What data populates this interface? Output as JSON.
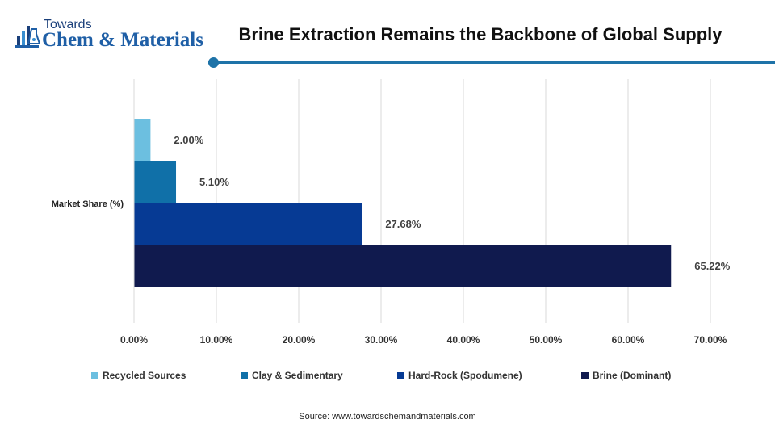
{
  "logo": {
    "line1": "Towards",
    "line2": "Chem & Materials"
  },
  "header": {
    "title": "Brine Extraction Remains the Backbone of Global Supply"
  },
  "source": "Source: www.towardschemandmaterials.com",
  "colors": {
    "accent": "#1e73a8",
    "grid": "#d9d9d9"
  },
  "chart_data": {
    "type": "bar",
    "orientation": "horizontal",
    "categories": [
      "Market Share (%)"
    ],
    "series": [
      {
        "name": "Recycled Sources",
        "values": [
          2.0
        ],
        "label": "2.00%",
        "color": "#6cbfe0"
      },
      {
        "name": "Clay & Sedimentary",
        "values": [
          5.1
        ],
        "label": "5.10%",
        "color": "#1070a8"
      },
      {
        "name": "Hard-Rock (Spodumene)",
        "values": [
          27.68
        ],
        "label": "27.68%",
        "color": "#063a94"
      },
      {
        "name": "Brine (Dominant)",
        "values": [
          65.22
        ],
        "label": "65.22%",
        "color": "#101a4e"
      }
    ],
    "xlim": [
      0,
      70
    ],
    "xticks": [
      "0.00%",
      "10.00%",
      "20.00%",
      "30.00%",
      "40.00%",
      "50.00%",
      "60.00%",
      "70.00%"
    ],
    "xlabel": "",
    "ylabel": "",
    "grid": true,
    "legend_position": "bottom"
  }
}
